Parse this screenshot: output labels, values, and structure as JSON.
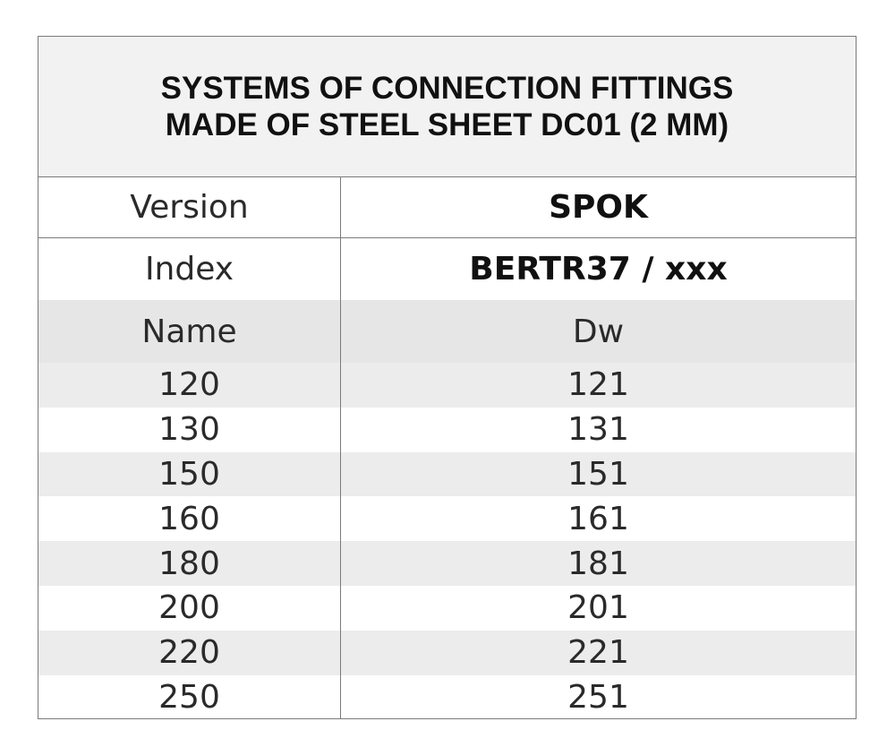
{
  "title": {
    "line1": "SYSTEMS OF CONNECTION FITTINGS",
    "line2": "MADE OF STEEL SHEET DC01 (2 MM)"
  },
  "version": {
    "label": "Version",
    "value": "SPOK"
  },
  "index": {
    "label": "Index",
    "value": "BERTR37 / xxx"
  },
  "columns": {
    "name": "Name",
    "dw": "Dw"
  },
  "rows": [
    {
      "name": "120",
      "dw": "121"
    },
    {
      "name": "130",
      "dw": "131"
    },
    {
      "name": "150",
      "dw": "151"
    },
    {
      "name": "160",
      "dw": "161"
    },
    {
      "name": "180",
      "dw": "181"
    },
    {
      "name": "200",
      "dw": "201"
    },
    {
      "name": "220",
      "dw": "221"
    },
    {
      "name": "250",
      "dw": "251"
    }
  ],
  "colors": {
    "title_background": "#f2f2f2",
    "header_shade": "#e6e6e6",
    "stripe_shade": "#ececec",
    "border": "#7a7a7a"
  }
}
